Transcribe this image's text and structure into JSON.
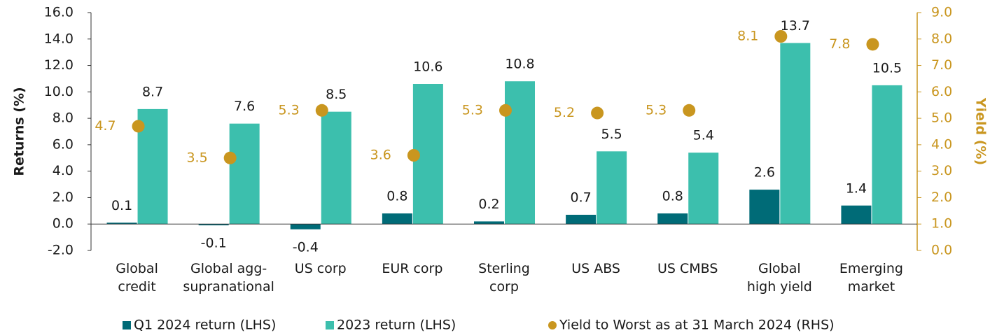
{
  "chart_data": {
    "type": "bar",
    "y_label": "Returns (%)",
    "y2_label": "Yield  (%)",
    "categories": [
      [
        "Global",
        "credit"
      ],
      [
        "Global agg-",
        "supranational"
      ],
      [
        "US corp"
      ],
      [
        "EUR corp"
      ],
      [
        "Sterling",
        "corp"
      ],
      [
        "US ABS"
      ],
      [
        "US CMBS"
      ],
      [
        "Global",
        "high yield"
      ],
      [
        "Emerging",
        "market"
      ]
    ],
    "series": [
      {
        "name": "Q1 2024 return (LHS)",
        "color": "#006b77",
        "values": [
          0.1,
          -0.1,
          -0.4,
          0.8,
          0.2,
          0.7,
          0.8,
          2.6,
          1.4
        ]
      },
      {
        "name": "2023 return (LHS)",
        "color": "#3cbfad",
        "values": [
          8.7,
          7.6,
          8.5,
          10.6,
          10.8,
          5.5,
          5.4,
          13.7,
          10.5
        ]
      },
      {
        "name": "Yield to Worst as at 31 March 2024 (RHS)",
        "color": "#c9961f",
        "type": "scatter",
        "axis": "y2",
        "values": [
          4.7,
          3.5,
          5.3,
          3.6,
          5.3,
          5.2,
          5.3,
          8.1,
          7.8
        ]
      }
    ],
    "ylim": [
      -2,
      16
    ],
    "yticks": [
      {
        "value": -2,
        "label": "-2.0"
      },
      {
        "value": 0,
        "label": "0.0"
      },
      {
        "value": 2,
        "label": "2.0"
      },
      {
        "value": 4,
        "label": "4.0"
      },
      {
        "value": 6,
        "label": "6.0"
      },
      {
        "value": 8,
        "label": "8.0"
      },
      {
        "value": 10,
        "label": "10.0"
      },
      {
        "value": 12,
        "label": "12.0"
      },
      {
        "value": 14,
        "label": "14.0"
      },
      {
        "value": 16,
        "label": "16.0"
      }
    ],
    "y2lim": [
      0,
      9
    ],
    "y2ticks": [
      {
        "value": 0,
        "label": "0.0"
      },
      {
        "value": 1,
        "label": "1.0"
      },
      {
        "value": 2,
        "label": "2.0"
      },
      {
        "value": 3,
        "label": "3.0"
      },
      {
        "value": 4,
        "label": "4.0"
      },
      {
        "value": 5,
        "label": "5.0"
      },
      {
        "value": 6,
        "label": "6.0"
      },
      {
        "value": 7,
        "label": "7.0"
      },
      {
        "value": 8,
        "label": "8.0"
      },
      {
        "value": 9,
        "label": "9.0"
      }
    ],
    "legend": "bottom"
  }
}
